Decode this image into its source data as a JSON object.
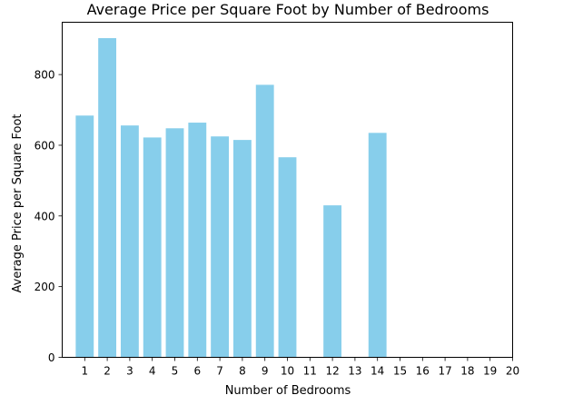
{
  "chart_data": {
    "type": "bar",
    "title": "Average Price per Square Foot by Number of Bedrooms",
    "xlabel": "Number of Bedrooms",
    "ylabel": "Average Price per Square Foot",
    "categories": [
      1,
      2,
      3,
      4,
      5,
      6,
      7,
      8,
      9,
      10,
      11,
      12,
      13,
      14,
      15,
      16,
      17,
      18,
      19,
      20
    ],
    "values": [
      684,
      903,
      656,
      622,
      648,
      664,
      625,
      615,
      771,
      566,
      null,
      430,
      null,
      635,
      null,
      null,
      null,
      null,
      null,
      null
    ],
    "xlim": [
      0.0,
      20.0
    ],
    "ylim": [
      0,
      948
    ],
    "yticks": [
      0,
      200,
      400,
      600,
      800
    ],
    "bar_color": "#87ceeb",
    "grid": false,
    "legend": "none"
  }
}
